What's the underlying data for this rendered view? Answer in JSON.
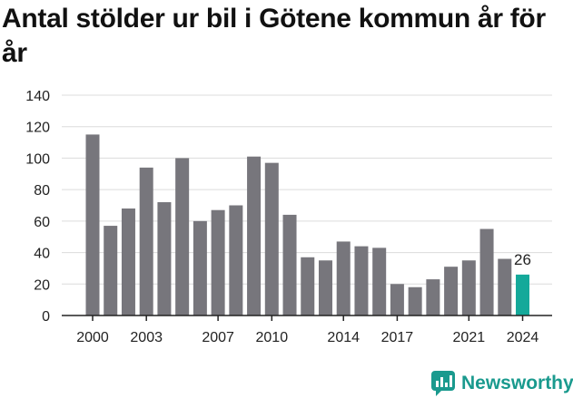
{
  "title": "Antal stölder ur bil i Götene kommun år för år",
  "brand": {
    "name": "Newsworthy",
    "icon": "newsworthy-logo-icon",
    "color": "#1a9a8e"
  },
  "chart_data": {
    "type": "bar",
    "title": "Antal stölder ur bil i Götene kommun år för år",
    "xlabel": "",
    "ylabel": "",
    "ylim": [
      0,
      140
    ],
    "yticks": [
      0,
      20,
      40,
      60,
      80,
      100,
      120,
      140
    ],
    "xtick_labels": [
      "2000",
      "2003",
      "2007",
      "2010",
      "2014",
      "2017",
      "2021",
      "2024"
    ],
    "grid": true,
    "categories": [
      "2000",
      "2001",
      "2002",
      "2003",
      "2004",
      "2005",
      "2006",
      "2007",
      "2008",
      "2009",
      "2010",
      "2011",
      "2012",
      "2013",
      "2014",
      "2015",
      "2016",
      "2017",
      "2018",
      "2019",
      "2020",
      "2021",
      "2022",
      "2023",
      "2024"
    ],
    "values": [
      115,
      57,
      68,
      94,
      72,
      100,
      60,
      67,
      70,
      101,
      97,
      64,
      37,
      35,
      47,
      44,
      43,
      20,
      18,
      23,
      31,
      35,
      55,
      36,
      26
    ],
    "colors": {
      "bar": "#77767c",
      "highlight": "#14a99a",
      "grid": "#dcdcdc",
      "axis": "#222222"
    },
    "highlight_index": 24,
    "highlight_label": "26"
  }
}
